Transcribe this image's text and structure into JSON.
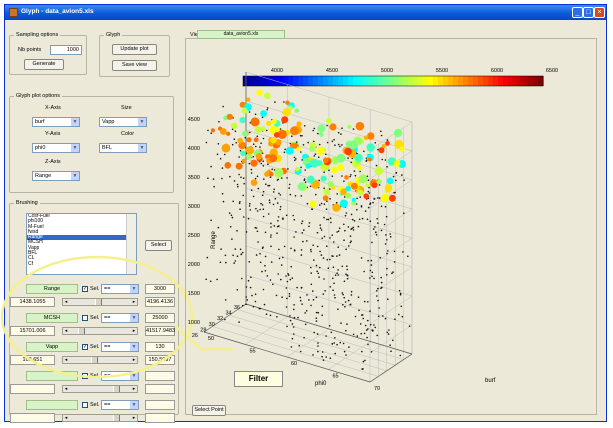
{
  "window": {
    "title": "Glyph - data_avion5.xls"
  },
  "sampling": {
    "title": "Sampling options",
    "nb_points_label": "Nb points",
    "nb_points_value": "1000",
    "generate_label": "Generate"
  },
  "glyph": {
    "title": "Glyph",
    "update_label": "Update plot",
    "save_label": "Save view"
  },
  "plot_options": {
    "title": "Glyph plot options",
    "xaxis_label": "X-Axis",
    "xaxis_value": "burf",
    "size_label": "Size",
    "size_value": "Vapp",
    "yaxis_label": "Y-Axis",
    "yaxis_value": "phi0",
    "color_label": "Color",
    "color_value": "BFL",
    "zaxis_label": "Z-Axis",
    "zaxis_value": "Range"
  },
  "brushing": {
    "title": "Brushing",
    "list_items": [
      "Cosf-Fuel",
      "phi100",
      "M-Fuel",
      "fwsd",
      "Range",
      "MCSH",
      "Vapp",
      "BFL",
      "CL",
      "Cf"
    ],
    "list_selected": 4,
    "select_label": "Select",
    "filters": [
      {
        "name": "Range",
        "checked": true,
        "sel_label": "Sel.",
        "op": "==",
        "value": "3000",
        "min": "1438.1055",
        "max": "4196.4136",
        "thumb": 0.45
      },
      {
        "name": "MCSH",
        "checked": false,
        "sel_label": "Sel.",
        "op": "==",
        "value": "25000",
        "min": "15701.006",
        "max": "41517.9483",
        "thumb": 0.15
      },
      {
        "name": "Vapp",
        "checked": true,
        "sel_label": "Sel.",
        "op": "==",
        "value": "130",
        "min": "108.651",
        "max": "150.5097",
        "thumb": 0.38
      },
      {
        "name": "",
        "checked": false,
        "sel_label": "Sel.",
        "op": "==",
        "value": "",
        "min": "",
        "max": "",
        "thumb": 0.75
      },
      {
        "name": "",
        "checked": false,
        "sel_label": "Sel.",
        "op": "==",
        "value": "",
        "min": "",
        "max": "",
        "thumb": 0.75
      }
    ]
  },
  "annotation": {
    "label": "Filter"
  },
  "view": {
    "tab_label": "View",
    "file_tab": "data_avion5.xls",
    "select_point_label": "Select Point"
  },
  "chart_data": {
    "type": "scatter",
    "xlabel": "burf",
    "ylabel": "phi0",
    "zlabel": "Range",
    "colorbar_ticks": [
      "4000",
      "4500",
      "5000",
      "5500",
      "6000",
      "6500"
    ],
    "x_ticks": [
      "50",
      "55",
      "60",
      "65",
      "70"
    ],
    "y_ticks": [
      "26",
      "28",
      "30",
      "32",
      "34",
      "36"
    ],
    "z_ticks": [
      "1000",
      "1500",
      "2000",
      "2500",
      "3000",
      "3500",
      "4000",
      "4500"
    ],
    "grid": true,
    "colormap": [
      "#00008f",
      "#0000ff",
      "#0080ff",
      "#00ffff",
      "#80ff80",
      "#ffff00",
      "#ff8000",
      "#ff0000",
      "#800000"
    ]
  }
}
